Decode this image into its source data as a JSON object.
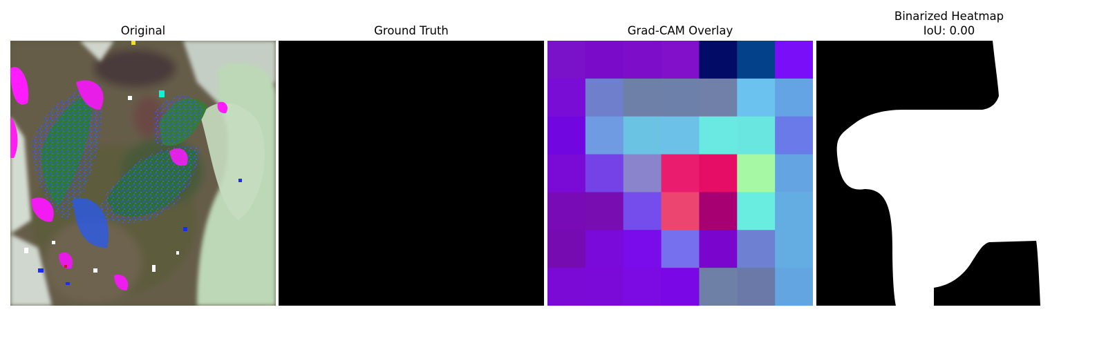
{
  "panels": [
    {
      "title": "Original"
    },
    {
      "title": "Ground Truth"
    },
    {
      "title": "Grad-CAM Overlay"
    },
    {
      "title_lines": [
        "Binarized Heatmap",
        "IoU: 0.00"
      ]
    }
  ],
  "gradcam_colors": [
    [
      "#7a12c9",
      "#7a0bc8",
      "#7d0dc9",
      "#820fca",
      "#020b66",
      "#03418a",
      "#7b0ef8"
    ],
    [
      "#790cd5",
      "#6f7fcb",
      "#6e80a8",
      "#6d80a9",
      "#7180a9",
      "#6cc2ef",
      "#64a4e4"
    ],
    [
      "#7106e1",
      "#6f9be3",
      "#6bc3e4",
      "#6cc1e8",
      "#6ae9e2",
      "#69e6e0",
      "#6a7be9"
    ],
    [
      "#7a0bd6",
      "#7442e7",
      "#8a84cc",
      "#ea1c6e",
      "#e60d66",
      "#a6f8a4",
      "#65a4e2"
    ],
    [
      "#780bb5",
      "#780db2",
      "#754ded",
      "#ec4670",
      "#a70072",
      "#69ede0",
      "#63ade3"
    ],
    [
      "#760bb2",
      "#7a0ad9",
      "#7a0bea",
      "#7670ee",
      "#7a06cd",
      "#6e80d2",
      "#63ade3"
    ],
    [
      "#7b0ad6",
      "#7b0ad8",
      "#7b0ae3",
      "#7a07e6",
      "#6e80a6",
      "#6b79a9",
      "#63a5e1"
    ]
  ]
}
